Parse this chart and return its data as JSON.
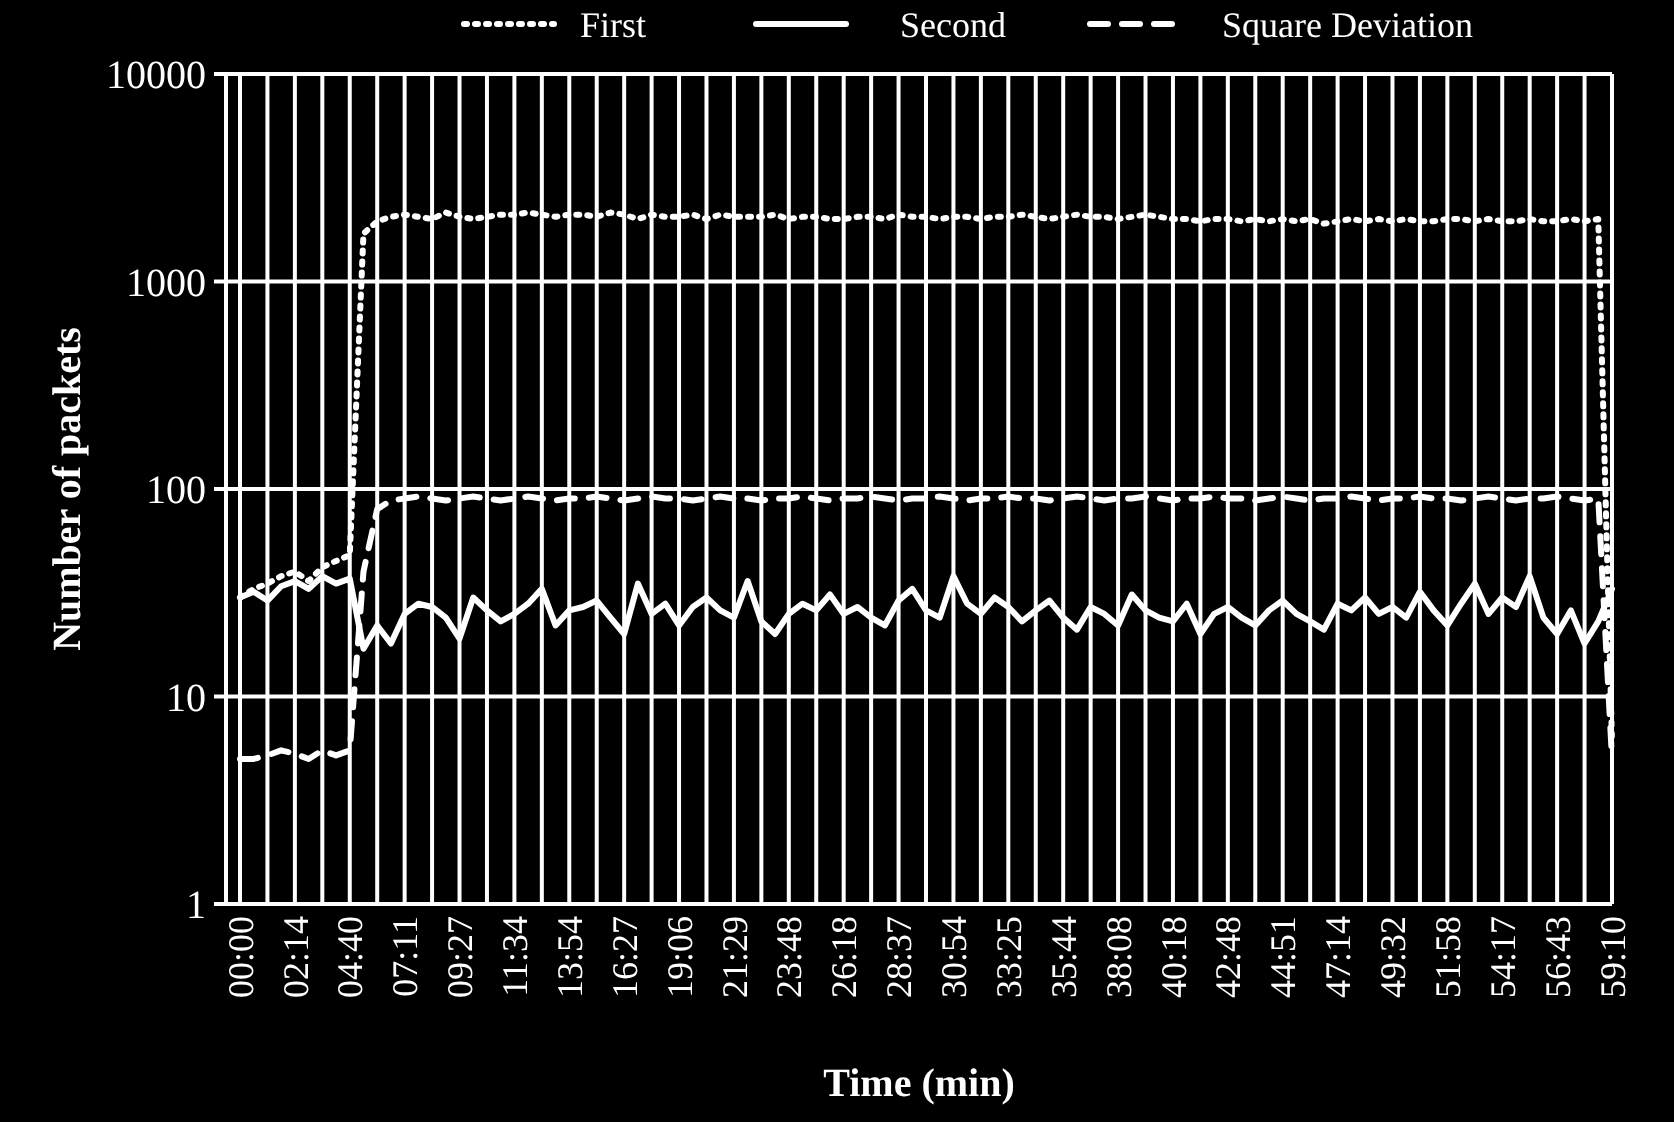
{
  "chart_data": {
    "type": "line",
    "xlabel": "Time (min)",
    "ylabel": "Number of packets",
    "categories": [
      "00:00",
      null,
      null,
      null,
      "02:14",
      null,
      null,
      null,
      "04:40",
      null,
      null,
      null,
      "07:11",
      null,
      null,
      null,
      "09:27",
      null,
      null,
      null,
      "11:34",
      null,
      null,
      null,
      "13:54",
      null,
      null,
      null,
      "16:27",
      null,
      null,
      null,
      "19:06",
      null,
      null,
      null,
      "21:29",
      null,
      null,
      null,
      "23:48",
      null,
      null,
      null,
      "26:18",
      null,
      null,
      null,
      "28:37",
      null,
      null,
      null,
      "30:54",
      null,
      null,
      null,
      "33:25",
      null,
      null,
      null,
      "35:44",
      null,
      null,
      null,
      "38:08",
      null,
      null,
      null,
      "40:18",
      null,
      null,
      null,
      "42:48",
      null,
      null,
      null,
      "44:51",
      null,
      null,
      null,
      "47:14",
      null,
      null,
      null,
      "49:32",
      null,
      null,
      null,
      "51:58",
      null,
      null,
      null,
      "54:17",
      null,
      null,
      null,
      "56:43",
      null,
      null,
      null,
      "59:10"
    ],
    "log": true,
    "ylim": [
      1,
      10000
    ],
    "yticks": [
      1,
      10,
      100,
      1000,
      10000
    ],
    "grid": true,
    "legend": "top",
    "series": [
      {
        "name": "First",
        "color": "#ffffff",
        "line_style": "dotted",
        "values": [
          30,
          33,
          35,
          38,
          40,
          36,
          42,
          45,
          48,
          1700,
          1950,
          2050,
          2100,
          2050,
          2000,
          2150,
          2050,
          2000,
          2050,
          2100,
          2100,
          2150,
          2100,
          2050,
          2100,
          2100,
          2050,
          2150,
          2100,
          2000,
          2100,
          2050,
          2050,
          2100,
          2000,
          2100,
          2050,
          2050,
          2050,
          2100,
          2000,
          2050,
          2050,
          2000,
          2000,
          2050,
          2050,
          2000,
          2100,
          2050,
          2050,
          2000,
          2050,
          2050,
          2000,
          2050,
          2050,
          2100,
          2050,
          2000,
          2050,
          2100,
          2050,
          2050,
          2000,
          2050,
          2100,
          2050,
          2000,
          2000,
          1950,
          2000,
          2000,
          1950,
          2000,
          1950,
          2000,
          1950,
          2000,
          1900,
          1950,
          2000,
          1950,
          2000,
          1950,
          2000,
          1950,
          1950,
          2000,
          2000,
          1950,
          2000,
          1950,
          1950,
          2000,
          1950,
          1950,
          2000,
          1950,
          2000,
          6
        ]
      },
      {
        "name": "Second",
        "color": "#ffffff",
        "line_style": "solid",
        "values": [
          30,
          32,
          29,
          34,
          36,
          33,
          38,
          35,
          37,
          17,
          22,
          18,
          25,
          28,
          27,
          24,
          19,
          30,
          26,
          23,
          25,
          28,
          33,
          22,
          26,
          27,
          29,
          24,
          20,
          35,
          25,
          28,
          22,
          27,
          30,
          26,
          24,
          36,
          23,
          20,
          25,
          28,
          26,
          31,
          25,
          27,
          24,
          22,
          29,
          33,
          26,
          24,
          38,
          28,
          25,
          30,
          27,
          23,
          26,
          29,
          24,
          21,
          27,
          25,
          22,
          31,
          26,
          24,
          23,
          28,
          20,
          25,
          27,
          24,
          22,
          26,
          29,
          25,
          23,
          21,
          28,
          26,
          30,
          25,
          27,
          24,
          32,
          26,
          22,
          28,
          35,
          25,
          30,
          27,
          38,
          24,
          20,
          26,
          18,
          23,
          33
        ]
      },
      {
        "name": "Square Deviation",
        "color": "#ffffff",
        "line_style": "dashed",
        "values": [
          5,
          5,
          5.2,
          5.5,
          5.3,
          5,
          5.5,
          5.2,
          5.5,
          40,
          80,
          88,
          90,
          92,
          90,
          88,
          90,
          92,
          90,
          88,
          90,
          92,
          90,
          88,
          90,
          90,
          92,
          90,
          88,
          90,
          92,
          90,
          90,
          88,
          90,
          92,
          90,
          90,
          88,
          90,
          90,
          92,
          90,
          88,
          90,
          90,
          92,
          90,
          88,
          90,
          90,
          92,
          90,
          88,
          90,
          90,
          92,
          90,
          90,
          88,
          90,
          92,
          90,
          88,
          90,
          90,
          92,
          90,
          88,
          90,
          90,
          92,
          90,
          90,
          88,
          90,
          92,
          90,
          88,
          90,
          90,
          92,
          90,
          88,
          90,
          90,
          92,
          90,
          90,
          88,
          90,
          92,
          90,
          88,
          90,
          90,
          92,
          90,
          88,
          90,
          5
        ]
      }
    ]
  }
}
